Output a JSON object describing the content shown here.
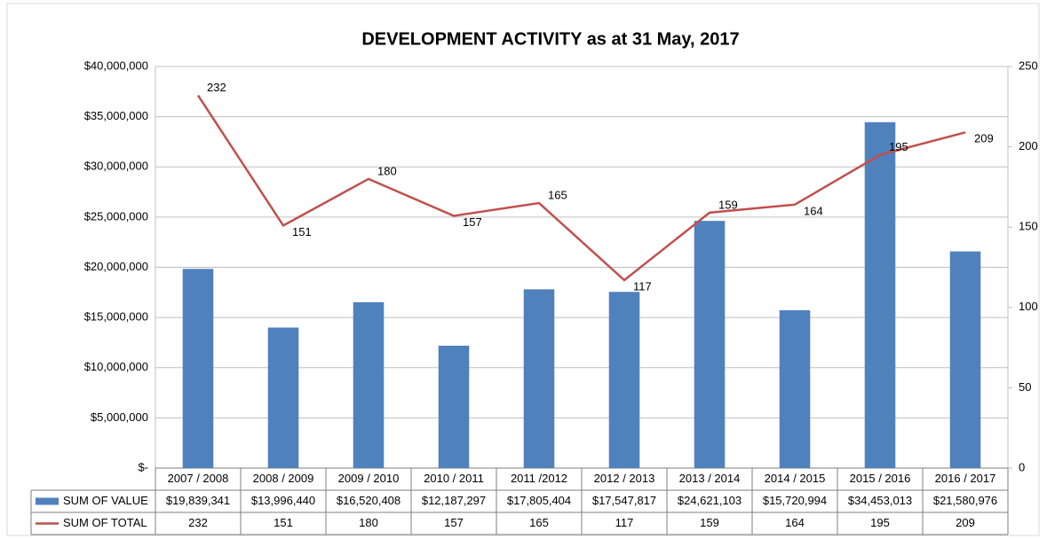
{
  "chart_data": {
    "type": "bar_line",
    "title": "DEVELOPMENT ACTIVITY as at 31 May, 2017",
    "categories": [
      "2007 / 2008",
      "2008 / 2009",
      "2009 / 2010",
      "2010 / 2011",
      "2011 /2012",
      "2012 / 2013",
      "2013 / 2014",
      "2014 / 2015",
      "2015 / 2016",
      "2016 / 2017"
    ],
    "series": [
      {
        "name": "SUM OF VALUE",
        "type": "bar",
        "color": "#4f81bd",
        "values": [
          19839341,
          13996440,
          16520408,
          12187297,
          17805404,
          17547817,
          24621103,
          15720994,
          34453013,
          21580976
        ],
        "value_labels": [
          "$19,839,341",
          "$13,996,440",
          "$16,520,408",
          "$12,187,297",
          "$17,805,404",
          "$17,547,817",
          "$24,621,103",
          "$15,720,994",
          "$34,453,013",
          "$21,580,976"
        ]
      },
      {
        "name": "SUM OF TOTAL",
        "type": "line",
        "axis": "y2",
        "color": "#c0504d",
        "values": [
          232,
          151,
          180,
          157,
          165,
          117,
          159,
          164,
          195,
          209
        ]
      }
    ],
    "ylim": [
      0,
      40000000
    ],
    "yticks": [
      {
        "value": 0,
        "label": "$-"
      },
      {
        "value": 5000000,
        "label": "$5,000,000"
      },
      {
        "value": 10000000,
        "label": "$10,000,000"
      },
      {
        "value": 15000000,
        "label": "$15,000,000"
      },
      {
        "value": 20000000,
        "label": "$20,000,000"
      },
      {
        "value": 25000000,
        "label": "$25,000,000"
      },
      {
        "value": 30000000,
        "label": "$30,000,000"
      },
      {
        "value": 35000000,
        "label": "$35,000,000"
      },
      {
        "value": 40000000,
        "label": "$40,000,000"
      }
    ],
    "y2lim": [
      0,
      250
    ],
    "y2ticks": [
      0,
      50,
      100,
      150,
      200,
      250
    ],
    "grid": true
  }
}
